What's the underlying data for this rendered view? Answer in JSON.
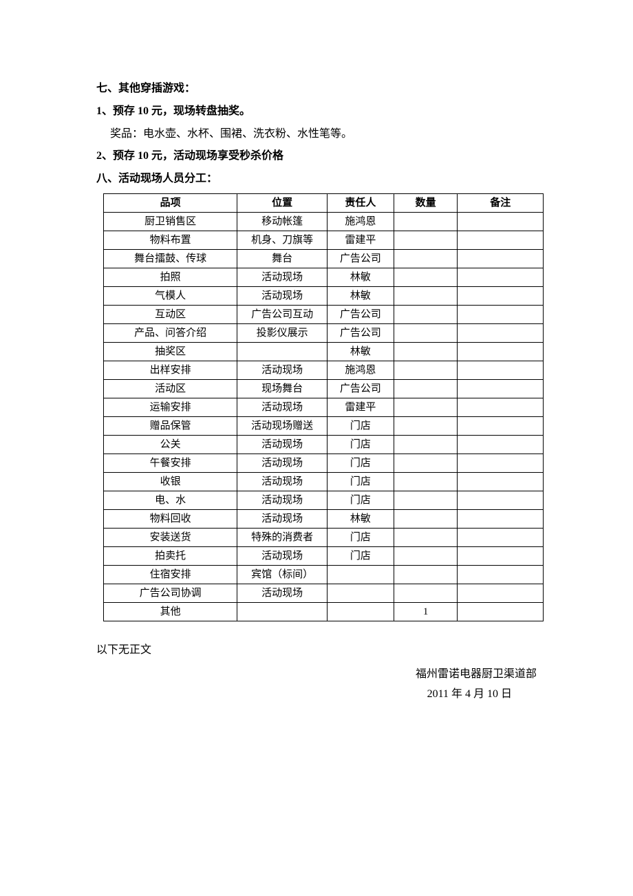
{
  "section7": {
    "title": "七、其他穿插游戏：",
    "item1_title": "1、预存 10 元，现场转盘抽奖。",
    "item1_desc": "奖品：电水壶、水杯、围裙、洗衣粉、水性笔等。",
    "item2_title": "2、预存 10 元，活动现场享受秒杀价格"
  },
  "section8": {
    "title": "八、活动现场人员分工："
  },
  "table": {
    "columns": [
      "品项",
      "位置",
      "责任人",
      "数量",
      "备注"
    ],
    "rows": [
      [
        "厨卫销售区",
        "移动帐篷",
        "施鸿恩",
        "",
        ""
      ],
      [
        "物料布置",
        "机身、刀旗等",
        "雷建平",
        "",
        ""
      ],
      [
        "舞台擂鼓、传球",
        "舞台",
        "广告公司",
        "",
        ""
      ],
      [
        "拍照",
        "活动现场",
        "林敏",
        "",
        ""
      ],
      [
        "气模人",
        "活动现场",
        "林敏",
        "",
        ""
      ],
      [
        "互动区",
        "广告公司互动",
        "广告公司",
        "",
        ""
      ],
      [
        "产品、问答介绍",
        "投影仪展示",
        "广告公司",
        "",
        ""
      ],
      [
        "抽奖区",
        "",
        "林敏",
        "",
        ""
      ],
      [
        "出样安排",
        "活动现场",
        "施鸿恩",
        "",
        ""
      ],
      [
        "活动区",
        "现场舞台",
        "广告公司",
        "",
        ""
      ],
      [
        "运输安排",
        "活动现场",
        "雷建平",
        "",
        ""
      ],
      [
        "赠品保管",
        "活动现场赠送",
        "门店",
        "",
        ""
      ],
      [
        "公关",
        "活动现场",
        "门店",
        "",
        ""
      ],
      [
        "午餐安排",
        "活动现场",
        "门店",
        "",
        ""
      ],
      [
        "收银",
        "活动现场",
        "门店",
        "",
        ""
      ],
      [
        "电、水",
        "活动现场",
        "门店",
        "",
        ""
      ],
      [
        "物料回收",
        "活动现场",
        "林敏",
        "",
        ""
      ],
      [
        "安装送货",
        "特殊的消费者",
        "门店",
        "",
        ""
      ],
      [
        "拍卖托",
        "活动现场",
        "门店",
        "",
        ""
      ],
      [
        "住宿安排",
        "宾馆（标间）",
        "",
        "",
        ""
      ],
      [
        "广告公司协调",
        "活动现场",
        "",
        "",
        ""
      ],
      [
        "其他",
        "",
        "",
        "1",
        ""
      ]
    ]
  },
  "footer": {
    "end_text": "以下无正文",
    "org": "福州雷诺电器厨卫渠道部",
    "date": "2011 年 4 月 10 日"
  }
}
